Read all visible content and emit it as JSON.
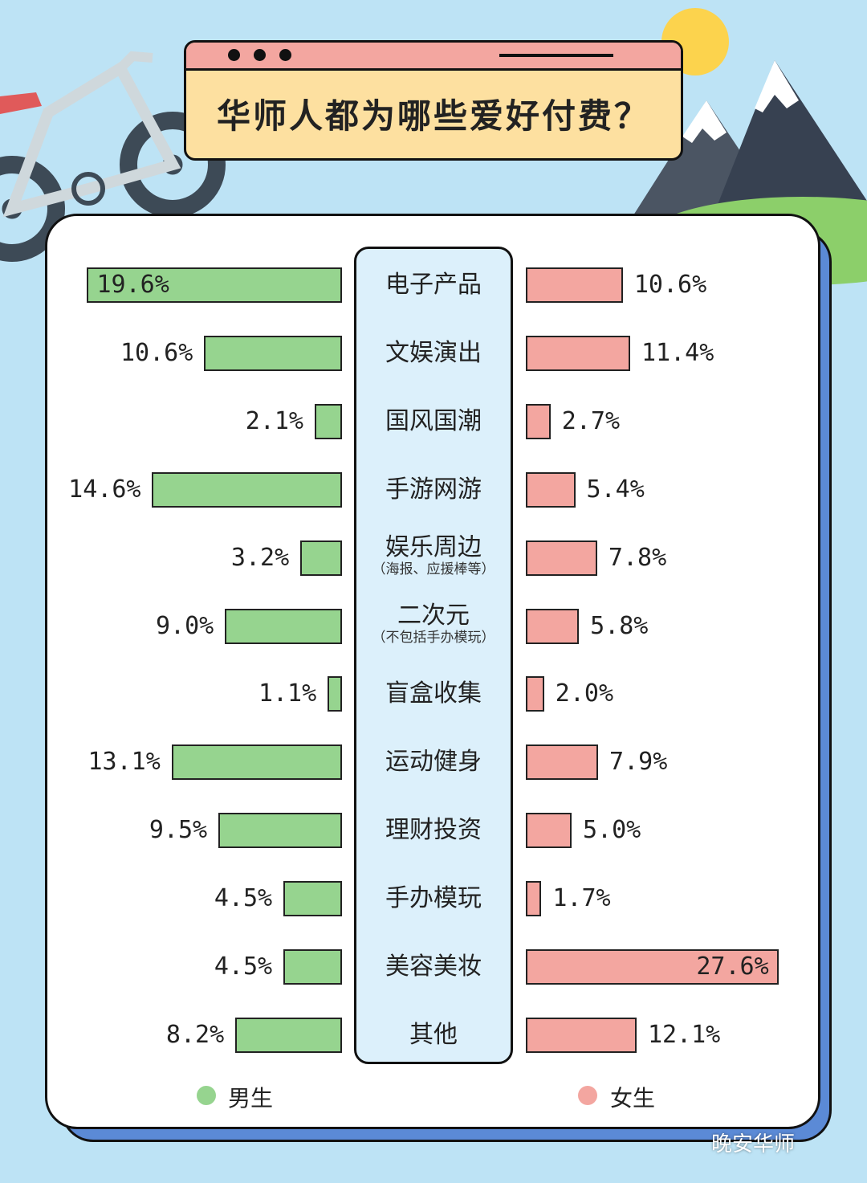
{
  "title": "华师人都为哪些爱好付费？",
  "watermark": "晚安华师",
  "colors": {
    "male": "#96d48f",
    "female": "#f3a6a0",
    "background": "#bde3f5",
    "title_box": "#fde0a0",
    "panel_shadow": "#5b8ad6"
  },
  "chart_data": {
    "type": "bar",
    "orientation": "horizontal",
    "categories": [
      {
        "label": "电子产品",
        "sub": ""
      },
      {
        "label": "文娱演出",
        "sub": ""
      },
      {
        "label": "国风国潮",
        "sub": ""
      },
      {
        "label": "手游网游",
        "sub": ""
      },
      {
        "label": "娱乐周边",
        "sub": "（海报、应援棒等）"
      },
      {
        "label": "二次元",
        "sub": "（不包括手办模玩）"
      },
      {
        "label": "盲盒收集",
        "sub": ""
      },
      {
        "label": "运动健身",
        "sub": ""
      },
      {
        "label": "理财投资",
        "sub": ""
      },
      {
        "label": "手办模玩",
        "sub": ""
      },
      {
        "label": "美容美妆",
        "sub": ""
      },
      {
        "label": "其他",
        "sub": ""
      }
    ],
    "series": [
      {
        "name": "男生",
        "values": [
          19.6,
          10.6,
          2.1,
          14.6,
          3.2,
          9.0,
          1.1,
          13.1,
          9.5,
          4.5,
          4.5,
          8.2
        ],
        "labels": [
          "19.6%",
          "10.6%",
          "2.1%",
          "14.6%",
          "3.2%",
          "9.0%",
          "1.1%",
          "13.1%",
          "9.5%",
          "4.5%",
          "4.5%",
          "8.2%"
        ]
      },
      {
        "name": "女生",
        "values": [
          10.6,
          11.4,
          2.7,
          5.4,
          7.8,
          5.8,
          2.0,
          7.9,
          5.0,
          1.7,
          27.6,
          12.1
        ],
        "labels": [
          "10.6%",
          "11.4%",
          "2.7%",
          "5.4%",
          "7.8%",
          "5.8%",
          "2.0%",
          "7.9%",
          "5.0%",
          "1.7%",
          "27.6%",
          "12.1%"
        ]
      }
    ],
    "legend": [
      "男生",
      "女生"
    ]
  }
}
